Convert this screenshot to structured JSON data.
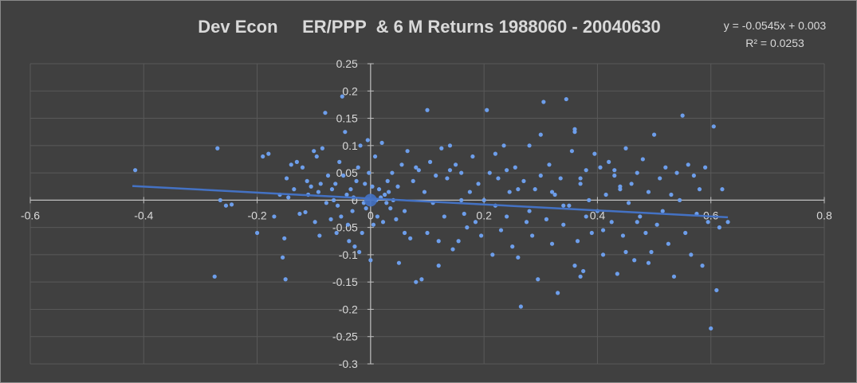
{
  "chart_data": {
    "type": "scatter",
    "title": "Dev Econ     ER/PPP  & 6 M Returns 1988060 - 20040630",
    "xlabel": "",
    "ylabel": "",
    "xlim": [
      -0.6,
      0.8
    ],
    "ylim": [
      -0.3,
      0.25
    ],
    "x_ticks": [
      "-0.6",
      "-0.4",
      "-0.2",
      "0",
      "0.2",
      "0.4",
      "0.6",
      "0.8"
    ],
    "y_ticks": [
      "0.25",
      "0.2",
      "0.15",
      "0.1",
      "0.05",
      "0",
      "-0.05",
      "-0.1",
      "-0.15",
      "-0.2",
      "-0.25",
      "-0.3"
    ],
    "grid": "horizontal and vertical",
    "legend": "none",
    "colors": {
      "background": "#404040",
      "points": "#6d9eeb",
      "trendline": "#4472c4",
      "grid": "#595959",
      "axis": "#bfbfbf",
      "text": "#d9d9d9"
    },
    "trendline": {
      "type": "linear",
      "slope": -0.0545,
      "intercept": 0.003,
      "x_range": [
        -0.42,
        0.63
      ],
      "equation": "y = -0.0545x + 0.003",
      "r_squared": "R² = 0.0253"
    },
    "series": [
      {
        "highlight_point": [
          0.0,
          0.0
        ],
        "points": [
          [
            -0.415,
            0.055
          ],
          [
            -0.27,
            0.095
          ],
          [
            -0.275,
            -0.14
          ],
          [
            -0.265,
            0.0
          ],
          [
            -0.255,
            -0.01
          ],
          [
            -0.245,
            -0.008
          ],
          [
            -0.2,
            -0.06
          ],
          [
            -0.19,
            0.08
          ],
          [
            -0.18,
            0.085
          ],
          [
            -0.17,
            -0.03
          ],
          [
            -0.16,
            0.01
          ],
          [
            -0.155,
            -0.105
          ],
          [
            -0.152,
            -0.07
          ],
          [
            -0.15,
            -0.145
          ],
          [
            -0.148,
            0.04
          ],
          [
            -0.145,
            0.005
          ],
          [
            -0.14,
            0.065
          ],
          [
            -0.135,
            0.02
          ],
          [
            -0.13,
            0.07
          ],
          [
            -0.125,
            -0.025
          ],
          [
            -0.12,
            0.06
          ],
          [
            -0.115,
            -0.022
          ],
          [
            -0.112,
            0.035
          ],
          [
            -0.11,
            0.01
          ],
          [
            -0.105,
            0.025
          ],
          [
            -0.1,
            0.09
          ],
          [
            -0.098,
            -0.04
          ],
          [
            -0.095,
            0.08
          ],
          [
            -0.092,
            0.015
          ],
          [
            -0.09,
            -0.065
          ],
          [
            -0.088,
            0.03
          ],
          [
            -0.085,
            0.095
          ],
          [
            -0.08,
            0.16
          ],
          [
            -0.078,
            -0.005
          ],
          [
            -0.075,
            0.045
          ],
          [
            -0.07,
            -0.035
          ],
          [
            -0.068,
            0.02
          ],
          [
            -0.065,
            0.0
          ],
          [
            -0.062,
            0.03
          ],
          [
            -0.06,
            -0.06
          ],
          [
            -0.058,
            -0.01
          ],
          [
            -0.055,
            0.07
          ],
          [
            -0.052,
            -0.03
          ],
          [
            -0.05,
            0.19
          ],
          [
            -0.048,
            0.045
          ],
          [
            -0.045,
            0.125
          ],
          [
            -0.042,
            0.01
          ],
          [
            -0.04,
            -0.045
          ],
          [
            -0.038,
            -0.075
          ],
          [
            -0.035,
            0.02
          ],
          [
            -0.032,
            -0.02
          ],
          [
            -0.03,
            0.005
          ],
          [
            -0.028,
            -0.085
          ],
          [
            -0.025,
            0.035
          ],
          [
            -0.022,
            0.06
          ],
          [
            -0.02,
            -0.095
          ],
          [
            -0.018,
            0.1
          ],
          [
            -0.015,
            -0.06
          ],
          [
            -0.012,
            -0.005
          ],
          [
            -0.01,
            0.03
          ],
          [
            -0.008,
            -0.015
          ],
          [
            -0.005,
            0.11
          ],
          [
            -0.003,
            0.05
          ],
          [
            0.0,
            -0.11
          ],
          [
            0.003,
            0.025
          ],
          [
            0.005,
            -0.045
          ],
          [
            0.008,
            0.08
          ],
          [
            0.01,
            0.0
          ],
          [
            0.012,
            -0.03
          ],
          [
            0.015,
            0.02
          ],
          [
            0.018,
            0.005
          ],
          [
            0.02,
            0.105
          ],
          [
            0.022,
            -0.04
          ],
          [
            0.025,
            0.01
          ],
          [
            0.028,
            -0.005
          ],
          [
            0.03,
            0.035
          ],
          [
            0.032,
            0.015
          ],
          [
            0.035,
            -0.015
          ],
          [
            0.038,
            0.05
          ],
          [
            0.04,
            0.0
          ],
          [
            0.045,
            -0.035
          ],
          [
            0.048,
            0.025
          ],
          [
            0.05,
            -0.115
          ],
          [
            0.055,
            0.065
          ],
          [
            0.06,
            -0.02
          ],
          [
            0.065,
            0.09
          ],
          [
            0.07,
            -0.07
          ],
          [
            0.075,
            0.035
          ],
          [
            0.08,
            -0.15
          ],
          [
            0.085,
            0.055
          ],
          [
            0.09,
            -0.145
          ],
          [
            0.095,
            0.015
          ],
          [
            0.1,
            -0.06
          ],
          [
            0.105,
            0.07
          ],
          [
            0.11,
            -0.005
          ],
          [
            0.115,
            0.045
          ],
          [
            0.12,
            -0.12
          ],
          [
            0.125,
            0.095
          ],
          [
            0.13,
            -0.03
          ],
          [
            0.135,
            0.04
          ],
          [
            0.14,
            0.055
          ],
          [
            0.145,
            -0.09
          ],
          [
            0.15,
            0.065
          ],
          [
            0.155,
            -0.075
          ],
          [
            0.16,
            0.0
          ],
          [
            0.165,
            -0.025
          ],
          [
            0.17,
            -0.05
          ],
          [
            0.175,
            0.015
          ],
          [
            0.18,
            0.08
          ],
          [
            0.185,
            -0.04
          ],
          [
            0.19,
            0.03
          ],
          [
            0.195,
            -0.065
          ],
          [
            0.2,
            0.0
          ],
          [
            0.205,
            0.165
          ],
          [
            0.21,
            0.05
          ],
          [
            0.215,
            -0.1
          ],
          [
            0.22,
            -0.01
          ],
          [
            0.225,
            0.04
          ],
          [
            0.23,
            -0.055
          ],
          [
            0.235,
            0.1
          ],
          [
            0.24,
            -0.03
          ],
          [
            0.245,
            0.015
          ],
          [
            0.25,
            -0.085
          ],
          [
            0.255,
            0.06
          ],
          [
            0.26,
            -0.105
          ],
          [
            0.265,
            -0.195
          ],
          [
            0.27,
            0.035
          ],
          [
            0.275,
            -0.04
          ],
          [
            0.28,
            0.1
          ],
          [
            0.285,
            -0.065
          ],
          [
            0.29,
            0.02
          ],
          [
            0.295,
            -0.145
          ],
          [
            0.3,
            0.045
          ],
          [
            0.305,
            0.18
          ],
          [
            0.31,
            -0.035
          ],
          [
            0.315,
            0.065
          ],
          [
            0.32,
            -0.08
          ],
          [
            0.325,
            0.01
          ],
          [
            0.33,
            -0.17
          ],
          [
            0.335,
            0.04
          ],
          [
            0.34,
            -0.045
          ],
          [
            0.345,
            0.185
          ],
          [
            0.35,
            -0.01
          ],
          [
            0.355,
            0.09
          ],
          [
            0.36,
            0.13
          ],
          [
            0.365,
            -0.075
          ],
          [
            0.37,
            0.03
          ],
          [
            0.375,
            -0.13
          ],
          [
            0.38,
            0.055
          ],
          [
            0.385,
            0.0
          ],
          [
            0.39,
            -0.06
          ],
          [
            0.395,
            0.085
          ],
          [
            0.4,
            -0.02
          ],
          [
            0.405,
            0.06
          ],
          [
            0.41,
            -0.1
          ],
          [
            0.415,
            0.01
          ],
          [
            0.42,
            0.07
          ],
          [
            0.425,
            -0.04
          ],
          [
            0.43,
            0.045
          ],
          [
            0.435,
            -0.135
          ],
          [
            0.44,
            0.02
          ],
          [
            0.445,
            -0.065
          ],
          [
            0.45,
            0.095
          ],
          [
            0.455,
            -0.005
          ],
          [
            0.46,
            0.03
          ],
          [
            0.465,
            -0.11
          ],
          [
            0.47,
            0.05
          ],
          [
            0.475,
            -0.03
          ],
          [
            0.48,
            0.075
          ],
          [
            0.485,
            -0.06
          ],
          [
            0.49,
            0.015
          ],
          [
            0.495,
            -0.095
          ],
          [
            0.5,
            0.12
          ],
          [
            0.505,
            -0.045
          ],
          [
            0.51,
            0.04
          ],
          [
            0.515,
            -0.02
          ],
          [
            0.52,
            0.06
          ],
          [
            0.525,
            -0.08
          ],
          [
            0.53,
            0.01
          ],
          [
            0.535,
            -0.14
          ],
          [
            0.54,
            0.05
          ],
          [
            0.545,
            0.0
          ],
          [
            0.55,
            0.155
          ],
          [
            0.555,
            -0.06
          ],
          [
            0.56,
            0.065
          ],
          [
            0.565,
            -0.1
          ],
          [
            0.57,
            0.045
          ],
          [
            0.575,
            -0.025
          ],
          [
            0.58,
            0.02
          ],
          [
            0.585,
            -0.12
          ],
          [
            0.59,
            0.06
          ],
          [
            0.595,
            -0.04
          ],
          [
            0.6,
            -0.235
          ],
          [
            0.605,
            0.135
          ],
          [
            0.61,
            -0.165
          ],
          [
            0.615,
            -0.05
          ],
          [
            0.62,
            0.02
          ],
          [
            0.63,
            -0.04
          ],
          [
            0.22,
            0.085
          ],
          [
            0.24,
            0.055
          ],
          [
            0.26,
            0.02
          ],
          [
            0.28,
            -0.02
          ],
          [
            0.3,
            0.12
          ],
          [
            0.32,
            0.015
          ],
          [
            0.34,
            -0.01
          ],
          [
            0.36,
            0.125
          ],
          [
            0.37,
            -0.14
          ],
          [
            0.38,
            -0.03
          ],
          [
            0.36,
            -0.12
          ],
          [
            0.37,
            0.04
          ],
          [
            0.45,
            -0.095
          ],
          [
            0.43,
            0.055
          ],
          [
            0.47,
            -0.04
          ],
          [
            0.49,
            -0.115
          ],
          [
            0.44,
            0.025
          ],
          [
            0.41,
            -0.055
          ],
          [
            0.1,
            0.165
          ],
          [
            0.14,
            0.1
          ],
          [
            0.12,
            -0.075
          ],
          [
            0.16,
            0.05
          ],
          [
            0.08,
            0.06
          ],
          [
            0.06,
            -0.06
          ]
        ]
      }
    ]
  }
}
